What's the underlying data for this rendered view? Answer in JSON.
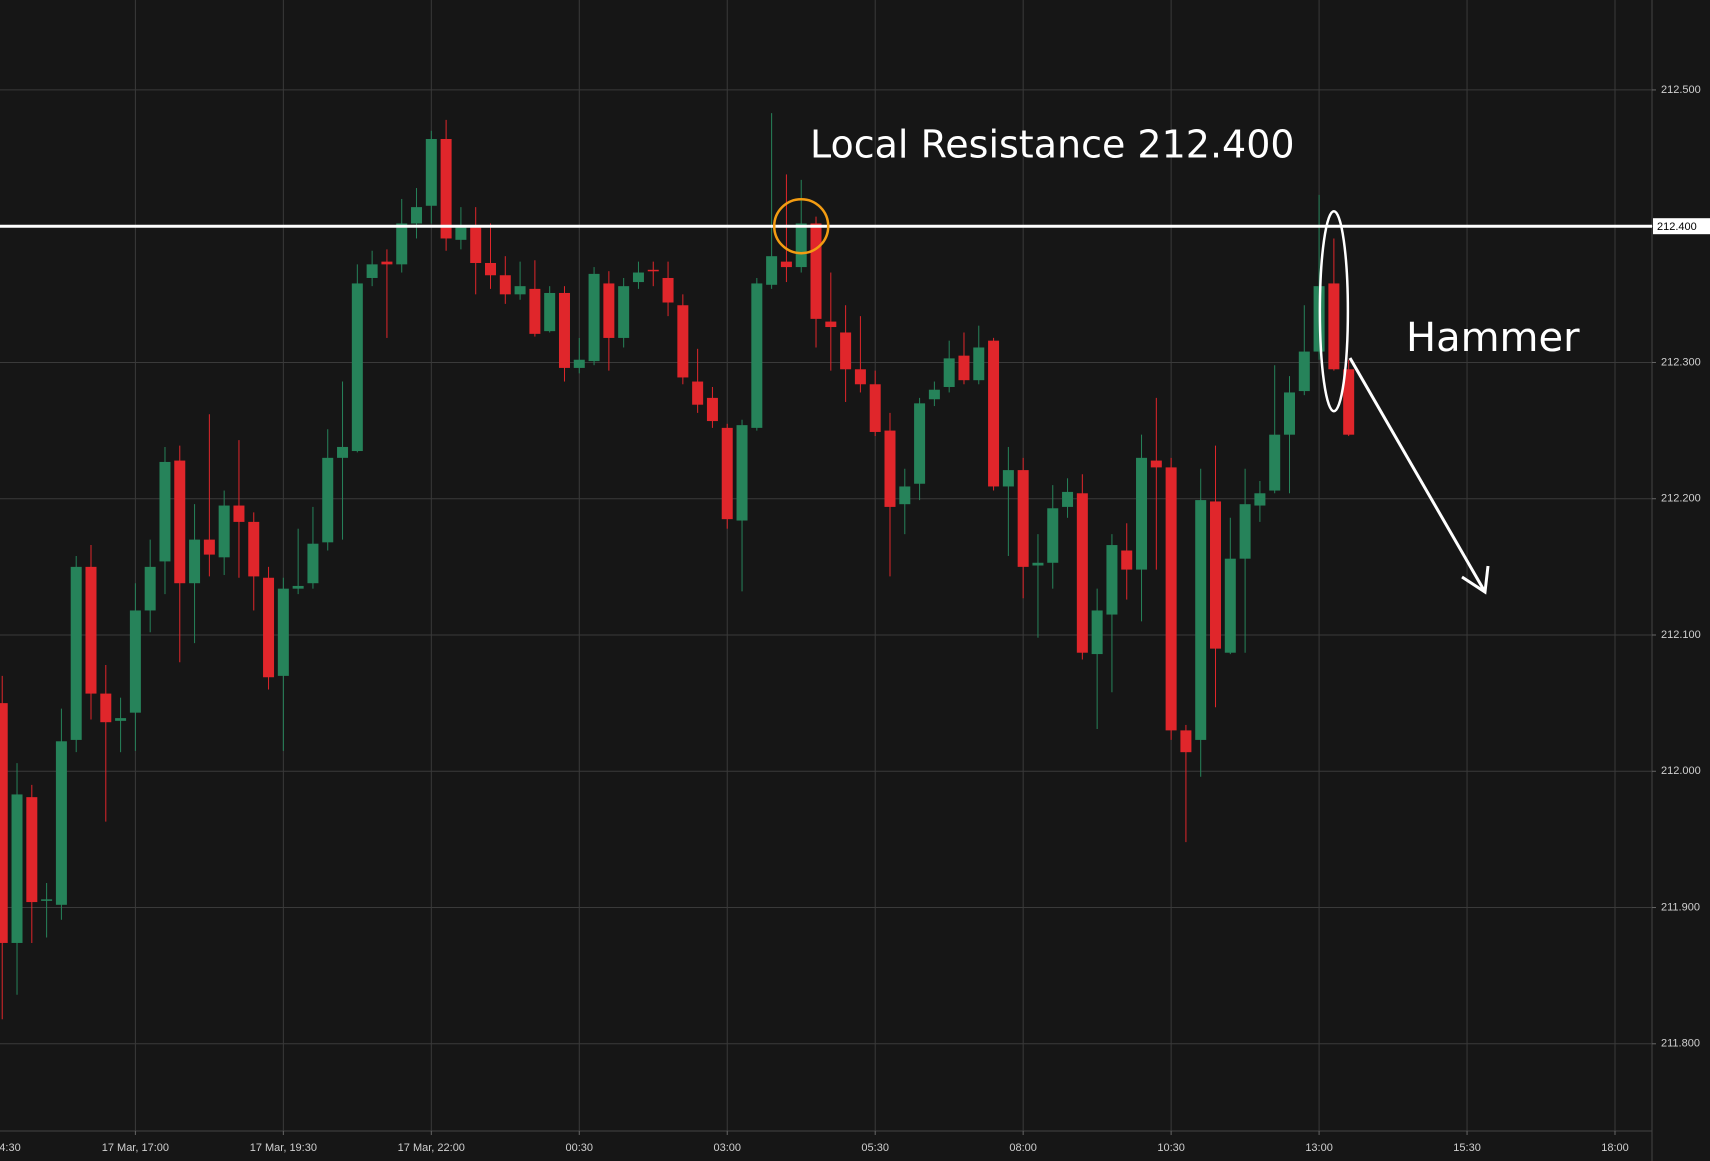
{
  "chart_data": {
    "type": "candlestick",
    "up_color": "#26835a",
    "down_color": "#e0262b",
    "open": [
      212.05,
      211.874,
      211.981,
      211.905,
      211.902,
      212.023,
      212.15,
      212.057,
      212.037,
      212.043,
      212.118,
      212.154,
      212.228,
      212.138,
      212.17,
      212.157,
      212.195,
      212.183,
      212.142,
      212.07,
      212.134,
      212.138,
      212.168,
      212.23,
      212.235,
      212.362,
      212.374,
      212.372,
      212.402,
      212.415,
      212.464,
      212.39,
      212.399,
      212.373,
      212.364,
      212.35,
      212.354,
      212.323,
      212.351,
      212.296,
      212.301,
      212.358,
      212.318,
      212.359,
      212.368,
      212.362,
      212.342,
      212.286,
      212.274,
      212.252,
      212.184,
      212.252,
      212.357,
      212.374,
      212.37,
      212.402,
      212.33,
      212.322,
      212.295,
      212.284,
      212.25,
      212.196,
      212.211,
      212.273,
      212.282,
      212.305,
      212.287,
      212.316,
      212.209,
      212.221,
      212.151,
      212.153,
      212.194,
      212.204,
      212.086,
      212.115,
      212.162,
      212.148,
      212.228,
      212.223,
      212.03,
      212.023,
      212.198,
      212.087,
      212.156,
      212.195,
      212.206,
      212.247,
      212.279,
      212.308,
      212.358,
      212.295
    ],
    "high": [
      212.07,
      212.006,
      211.99,
      211.918,
      212.046,
      212.158,
      212.166,
      212.078,
      212.054,
      212.138,
      212.17,
      212.238,
      212.239,
      212.196,
      212.262,
      212.206,
      212.243,
      212.19,
      212.15,
      212.142,
      212.178,
      212.194,
      212.251,
      212.286,
      212.372,
      212.382,
      212.383,
      212.42,
      212.428,
      212.47,
      212.478,
      212.414,
      212.414,
      212.402,
      212.378,
      212.374,
      212.375,
      212.356,
      212.356,
      212.318,
      212.37,
      212.367,
      212.362,
      212.374,
      212.374,
      212.374,
      212.35,
      212.31,
      212.282,
      212.255,
      212.258,
      212.362,
      212.483,
      212.438,
      212.434,
      212.407,
      212.366,
      212.342,
      212.334,
      212.294,
      212.263,
      212.222,
      212.274,
      212.286,
      212.316,
      212.322,
      212.327,
      212.318,
      212.238,
      212.23,
      212.174,
      212.21,
      212.215,
      212.218,
      212.134,
      212.174,
      212.182,
      212.247,
      212.274,
      212.23,
      212.034,
      212.222,
      212.239,
      212.186,
      212.222,
      212.213,
      212.298,
      212.29,
      212.342,
      212.423,
      212.391,
      212.302
    ],
    "low": [
      211.818,
      211.836,
      211.874,
      211.878,
      211.891,
      212.014,
      212.038,
      211.963,
      212.014,
      212.015,
      212.102,
      212.13,
      212.08,
      212.094,
      212.143,
      212.144,
      212.142,
      212.118,
      212.06,
      212.015,
      212.13,
      212.134,
      212.162,
      212.17,
      212.234,
      212.356,
      212.318,
      212.366,
      212.391,
      212.402,
      212.382,
      212.383,
      212.35,
      212.354,
      212.343,
      212.346,
      212.319,
      212.322,
      212.286,
      212.292,
      212.298,
      212.294,
      212.311,
      212.354,
      212.356,
      212.334,
      212.284,
      212.263,
      212.252,
      212.178,
      212.132,
      212.25,
      212.354,
      212.359,
      212.366,
      212.311,
      212.294,
      212.271,
      212.278,
      212.246,
      212.143,
      212.174,
      212.199,
      212.268,
      212.278,
      212.284,
      212.284,
      212.206,
      212.158,
      212.127,
      212.098,
      212.134,
      212.186,
      212.082,
      212.031,
      212.058,
      212.126,
      212.11,
      212.148,
      212.023,
      211.948,
      211.996,
      212.047,
      212.086,
      212.087,
      212.183,
      212.204,
      212.204,
      212.276,
      212.302,
      212.294,
      212.246
    ],
    "close": [
      211.874,
      211.983,
      211.904,
      211.906,
      212.022,
      212.15,
      212.057,
      212.036,
      212.039,
      212.118,
      212.15,
      212.227,
      212.138,
      212.17,
      212.159,
      212.195,
      212.183,
      212.143,
      212.069,
      212.134,
      212.136,
      212.167,
      212.23,
      212.238,
      212.358,
      212.372,
      212.372,
      212.402,
      212.414,
      212.464,
      212.391,
      212.399,
      212.373,
      212.364,
      212.35,
      212.356,
      212.321,
      212.351,
      212.296,
      212.302,
      212.365,
      212.318,
      212.356,
      212.366,
      212.367,
      212.344,
      212.289,
      212.269,
      212.257,
      212.185,
      212.254,
      212.358,
      212.378,
      212.37,
      212.402,
      212.332,
      212.326,
      212.295,
      212.284,
      212.249,
      212.194,
      212.209,
      212.27,
      212.28,
      212.303,
      212.287,
      212.311,
      212.209,
      212.221,
      212.15,
      212.153,
      212.193,
      212.205,
      212.087,
      212.118,
      212.166,
      212.148,
      212.23,
      212.223,
      212.03,
      212.014,
      212.199,
      212.09,
      212.156,
      212.196,
      212.204,
      212.247,
      212.278,
      212.308,
      212.356,
      212.295,
      212.247
    ],
    "xlim": [
      -0.15,
      111.5
    ],
    "xticks": [
      {
        "value": -1,
        "label": "4:30"
      },
      {
        "value": 9,
        "label": "17 Mar, 17:00"
      },
      {
        "value": 19,
        "label": "17 Mar, 19:30"
      },
      {
        "value": 29,
        "label": "17 Mar, 22:00"
      },
      {
        "value": 39,
        "label": "00:30"
      },
      {
        "value": 49,
        "label": "03:00"
      },
      {
        "value": 59,
        "label": "05:30"
      },
      {
        "value": 69,
        "label": "08:00"
      },
      {
        "value": 79,
        "label": "10:30"
      },
      {
        "value": 89,
        "label": "13:00"
      },
      {
        "value": 99,
        "label": "15:30"
      },
      {
        "value": 109,
        "label": "18:00"
      }
    ],
    "ylim": [
      211.736,
      212.566
    ],
    "yticks": [
      {
        "value": 211.8,
        "label": "211.800"
      },
      {
        "value": 211.9,
        "label": "211.900"
      },
      {
        "value": 212.0,
        "label": "212.000"
      },
      {
        "value": 212.1,
        "label": "212.100"
      },
      {
        "value": 212.2,
        "label": "212.200"
      },
      {
        "value": 212.3,
        "label": "212.300"
      },
      {
        "value": 212.4,
        "label": "212.400"
      },
      {
        "value": 212.5,
        "label": "212.500"
      }
    ],
    "grid": true,
    "resistance": {
      "value": 212.4,
      "label": "212.400",
      "color": "#ffffff"
    },
    "annotations": {
      "resistance_text": "Local Resistance 212.400",
      "hammer_text": "Hammer"
    }
  }
}
